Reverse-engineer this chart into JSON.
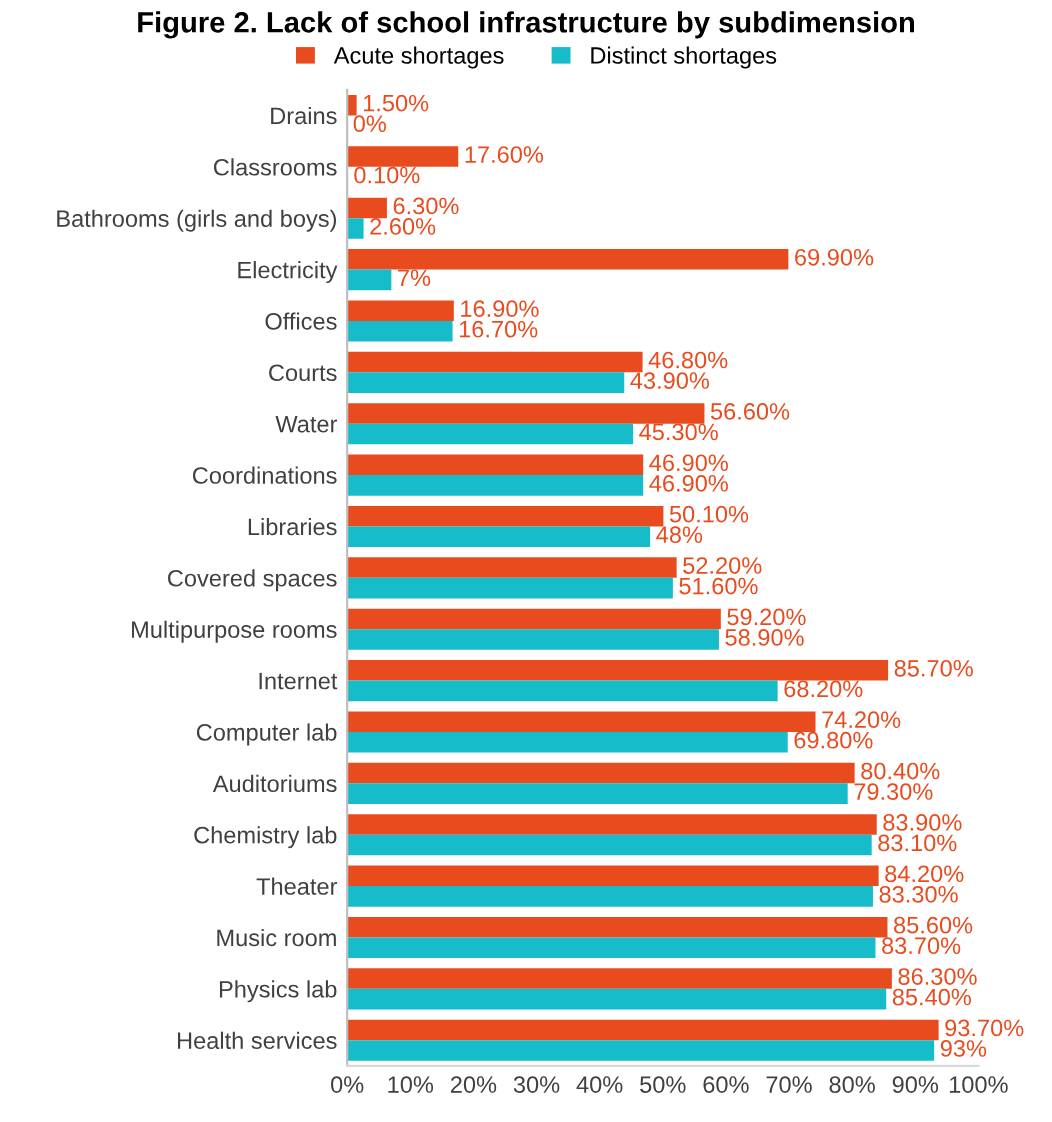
{
  "chart_data": {
    "type": "bar",
    "orientation": "horizontal",
    "title": "Figure 2. Lack of school infrastructure by subdimension",
    "categories": [
      "Drains",
      "Classrooms",
      "Bathrooms (girls and boys)",
      "Electricity",
      "Offices",
      "Courts",
      "Water",
      "Coordinations",
      "Libraries",
      "Covered spaces",
      "Multipurpose rooms",
      "Internet",
      "Computer lab",
      "Auditoriums",
      "Chemistry lab",
      "Theater",
      "Music room",
      "Physics lab",
      "Health services"
    ],
    "series": [
      {
        "name": "Acute shortages",
        "color": "#e84c1e",
        "values": [
          1.5,
          17.6,
          6.3,
          69.9,
          16.9,
          46.8,
          56.6,
          46.9,
          50.1,
          52.2,
          59.2,
          85.7,
          74.2,
          80.4,
          83.9,
          84.2,
          85.6,
          86.3,
          93.7
        ],
        "value_labels": [
          "1.50%",
          "17.60%",
          "6.30%",
          "69.90%",
          "16.90%",
          "46.80%",
          "56.60%",
          "46.90%",
          "50.10%",
          "52.20%",
          "59.20%",
          "85.70%",
          "74.20%",
          "80.40%",
          "83.90%",
          "84.20%",
          "85.60%",
          "86.30%",
          "93.70%"
        ]
      },
      {
        "name": "Distinct shortages",
        "color": "#17bccb",
        "values": [
          0,
          0.1,
          2.6,
          7,
          16.7,
          43.9,
          45.3,
          46.9,
          48,
          51.6,
          58.9,
          68.2,
          69.8,
          79.3,
          83.1,
          83.3,
          83.7,
          85.4,
          93
        ],
        "value_labels": [
          "0%",
          "0.10%",
          "2.60%",
          "7%",
          "16.70%",
          "43.90%",
          "45.30%",
          "46.90%",
          "48%",
          "51.60%",
          "58.90%",
          "68.20%",
          "69.80%",
          "79.30%",
          "83.10%",
          "83.30%",
          "83.70%",
          "85.40%",
          "93%"
        ]
      }
    ],
    "xlim": [
      0,
      100
    ],
    "xticks": [
      {
        "value": 0,
        "label": "0%"
      },
      {
        "value": 10,
        "label": "10%"
      },
      {
        "value": 20,
        "label": "20%"
      },
      {
        "value": 30,
        "label": "30%"
      },
      {
        "value": 40,
        "label": "40%"
      },
      {
        "value": 50,
        "label": "50%"
      },
      {
        "value": 60,
        "label": "60%"
      },
      {
        "value": 70,
        "label": "70%"
      },
      {
        "value": 80,
        "label": "80%"
      },
      {
        "value": 90,
        "label": "90%"
      },
      {
        "value": 100,
        "label": "100%"
      }
    ],
    "legend": "top",
    "grid": false
  }
}
